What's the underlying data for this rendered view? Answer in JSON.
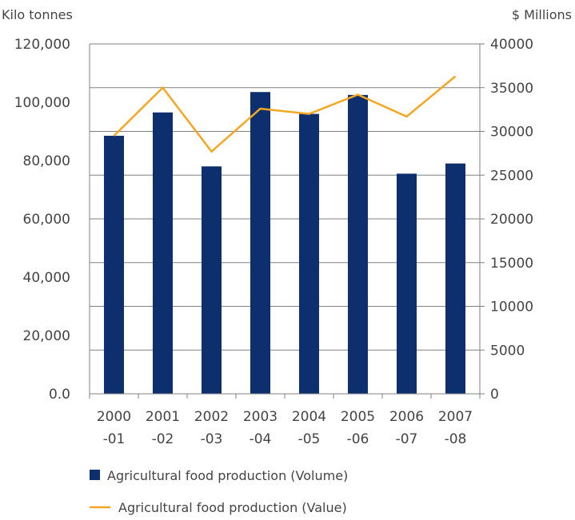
{
  "chart_data": {
    "type": "bar",
    "categories": [
      "2000-01",
      "2001-02",
      "2002-03",
      "2003-04",
      "2004-05",
      "2005-06",
      "2006-07",
      "2007-08"
    ],
    "category_labels": [
      [
        "2000",
        "-01"
      ],
      [
        "2001",
        "-02"
      ],
      [
        "2002",
        "-03"
      ],
      [
        "2003",
        "-04"
      ],
      [
        "2004",
        "-05"
      ],
      [
        "2005",
        "-06"
      ],
      [
        "2006",
        "-07"
      ],
      [
        "2007",
        "-08"
      ]
    ],
    "series": [
      {
        "name": "Agricultural food production (Volume)",
        "type": "bar",
        "axis": "left",
        "color": "#0d2f6e",
        "values": [
          88500,
          96500,
          78000,
          103500,
          96000,
          102500,
          75500,
          79000
        ]
      },
      {
        "name": "Agricultural food production (Value)",
        "type": "line",
        "axis": "right",
        "color": "#f5a623",
        "values": [
          29500,
          35000,
          27700,
          32600,
          32000,
          34200,
          31700,
          36300
        ]
      }
    ],
    "left_axis": {
      "label": "Kilo tonnes",
      "range": [
        0,
        120000
      ],
      "ticks": [
        0,
        20000,
        40000,
        60000,
        80000,
        100000,
        120000
      ],
      "tick_labels": [
        "0.0",
        "20,000",
        "40,000",
        "60,000",
        "80,000",
        "100,000",
        "120,000"
      ]
    },
    "right_axis": {
      "label": "$ Millions",
      "range": [
        0,
        40000
      ],
      "ticks": [
        0,
        5000,
        10000,
        15000,
        20000,
        25000,
        30000,
        35000,
        40000
      ],
      "tick_labels": [
        "0",
        "5000",
        "10000",
        "15000",
        "20000",
        "25000",
        "30000",
        "35000",
        "40000"
      ]
    },
    "grid": true,
    "legend": "bottom"
  }
}
